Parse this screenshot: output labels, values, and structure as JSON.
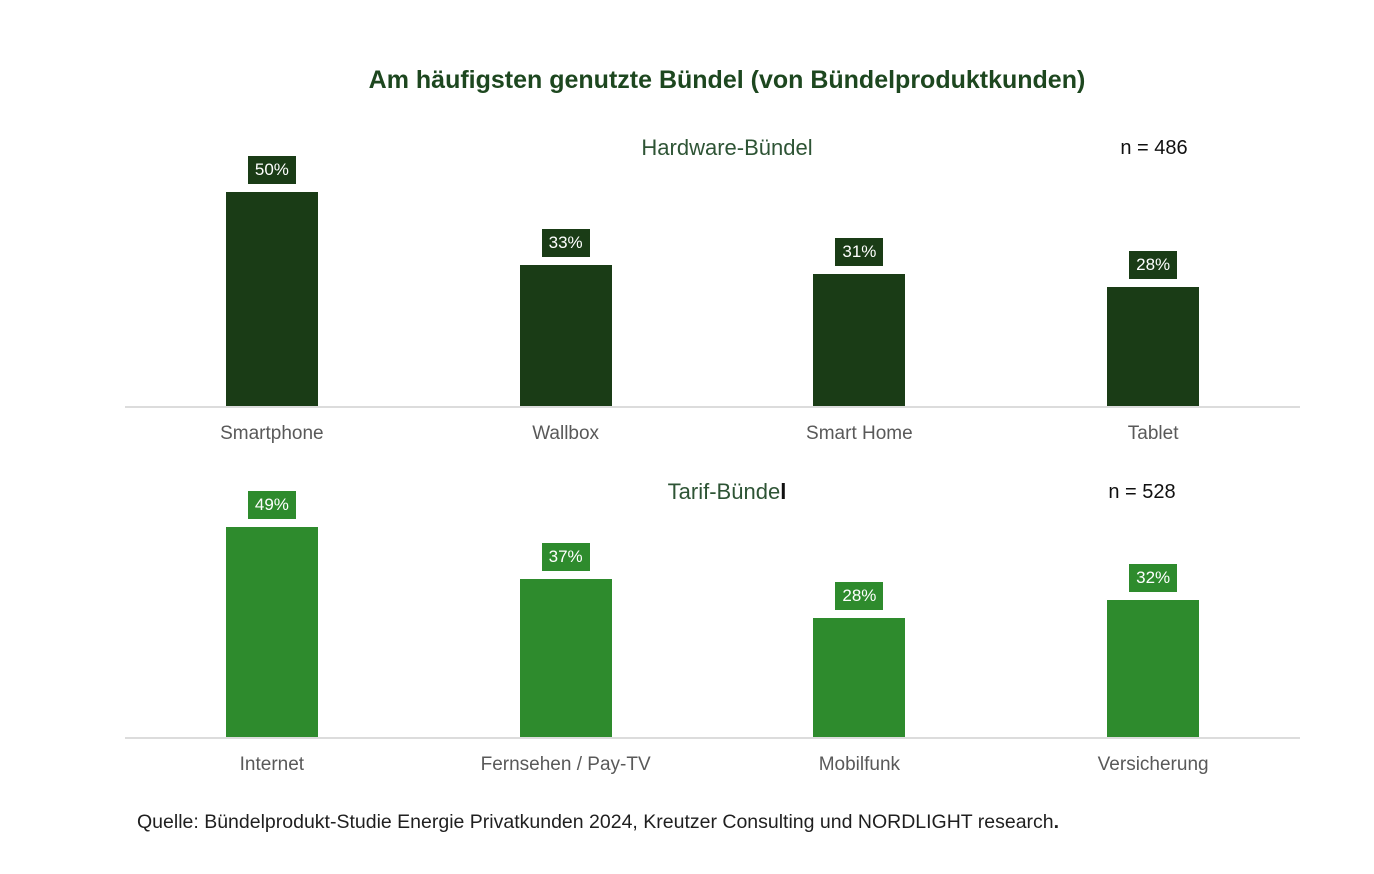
{
  "page": {
    "title": "Am häufigsten genutzte Bündel (von Bündelproduktkunden)",
    "title_color": "#1d471f",
    "subtitle_color": "#2e5435",
    "axis_color": "#dcdcdc",
    "category_color": "#595959",
    "source_color": "#1f1f1f",
    "source_text": "Quelle: Bündelprodukt-Studie Energie Privatkunden 2024, Kreutzer Consulting und NORDLIGHT research",
    "source_period": "."
  },
  "chart_data": [
    {
      "type": "bar",
      "title": "Hardware-Bündel",
      "title_main": "Hardware-Bündel",
      "title_bold_tail": "",
      "n_label": "n = 486",
      "categories": [
        "Smartphone",
        "Wallbox",
        "Smart Home",
        "Tablet"
      ],
      "values": [
        50,
        33,
        31,
        28
      ],
      "labels": [
        "50%",
        "33%",
        "31%",
        "28%"
      ],
      "value_suffix": "%",
      "bar_color": "#1a3c16",
      "ylim": [
        0,
        58
      ],
      "grid": false,
      "legend": false
    },
    {
      "type": "bar",
      "title": "Tarif-Bündel",
      "title_main": "Tarif-Bünde",
      "title_bold_tail": "l",
      "n_label": "n = 528",
      "categories": [
        "Internet",
        "Fernsehen / Pay-TV",
        "Mobilfunk",
        "Versicherung"
      ],
      "values": [
        49,
        37,
        28,
        32
      ],
      "labels": [
        "49%",
        "37%",
        "28%",
        "32%"
      ],
      "value_suffix": "%",
      "bar_color": "#2e8b2d",
      "ylim": [
        0,
        58
      ],
      "grid": false,
      "legend": false
    }
  ]
}
